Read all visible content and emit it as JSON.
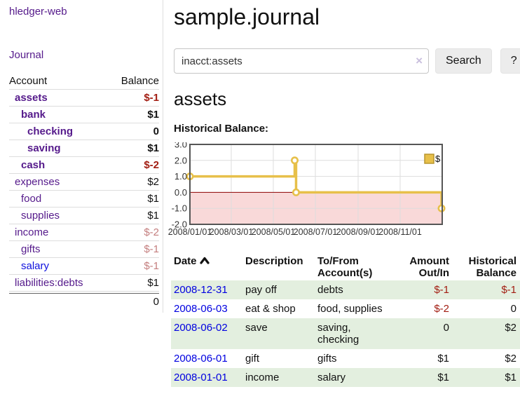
{
  "app": {
    "title": "hledger-web",
    "nav_journal": "Journal"
  },
  "sidebar": {
    "header": {
      "account": "Account",
      "balance": "Balance"
    },
    "accounts": [
      {
        "name": "assets",
        "depth": 0,
        "balance": "$-1",
        "bold": true,
        "neg": "strong",
        "link_color": "purple"
      },
      {
        "name": "bank",
        "depth": 1,
        "balance": "$1",
        "bold": true,
        "neg": "none",
        "link_color": "purple"
      },
      {
        "name": "checking",
        "depth": 2,
        "balance": "0",
        "bold": true,
        "neg": "none",
        "link_color": "purple"
      },
      {
        "name": "saving",
        "depth": 2,
        "balance": "$1",
        "bold": true,
        "neg": "none",
        "link_color": "purple"
      },
      {
        "name": "cash",
        "depth": 1,
        "balance": "$-2",
        "bold": true,
        "neg": "strong",
        "link_color": "purple"
      },
      {
        "name": "expenses",
        "depth": 0,
        "balance": "$2",
        "bold": false,
        "neg": "none",
        "link_color": "purple"
      },
      {
        "name": "food",
        "depth": 1,
        "balance": "$1",
        "bold": false,
        "neg": "none",
        "link_color": "purple"
      },
      {
        "name": "supplies",
        "depth": 1,
        "balance": "$1",
        "bold": false,
        "neg": "none",
        "link_color": "purple"
      },
      {
        "name": "income",
        "depth": 0,
        "balance": "$-2",
        "bold": false,
        "neg": "dim",
        "link_color": "purple"
      },
      {
        "name": "gifts",
        "depth": 1,
        "balance": "$-1",
        "bold": false,
        "neg": "dim",
        "link_color": "purple"
      },
      {
        "name": "salary",
        "depth": 1,
        "balance": "$-1",
        "bold": false,
        "neg": "dim",
        "link_color": "blue"
      },
      {
        "name": "liabilities:debts",
        "depth": 0,
        "balance": "$1",
        "bold": false,
        "neg": "none",
        "link_color": "purple"
      }
    ],
    "total": "0"
  },
  "header": {
    "title": "sample.journal"
  },
  "search": {
    "value": "inacct:assets",
    "clear_icon": "×",
    "button_label": "Search",
    "help_label": "?"
  },
  "account_page": {
    "title": "assets",
    "chart_label": "Historical Balance:"
  },
  "chart_data": {
    "type": "line",
    "title": "Historical Balance",
    "step": true,
    "legend": {
      "label": "$",
      "position": "top-right"
    },
    "ylim": [
      -2,
      3
    ],
    "y_ticks": [
      {
        "value": 3,
        "label": "3.0"
      },
      {
        "value": 2,
        "label": "2.0"
      },
      {
        "value": 1,
        "label": "1.0"
      },
      {
        "value": 0,
        "label": "0.0"
      },
      {
        "value": -1,
        "label": "-1.0"
      },
      {
        "value": -2,
        "label": "-2.0"
      }
    ],
    "x_range_days": [
      0,
      366
    ],
    "x_ticks": [
      {
        "label": "2008/01/01",
        "day": 0
      },
      {
        "label": "2008/03/01",
        "day": 60
      },
      {
        "label": "2008/05/01",
        "day": 121
      },
      {
        "label": "2008/07/01",
        "day": 182
      },
      {
        "label": "2008/09/01",
        "day": 244
      },
      {
        "label": "2008/11/01",
        "day": 305
      }
    ],
    "series": [
      {
        "name": "$",
        "points": [
          {
            "date": "2008-01-01",
            "day": 0,
            "value": 1
          },
          {
            "date": "2008-06-01",
            "day": 152,
            "value": 2
          },
          {
            "date": "2008-06-03",
            "day": 154,
            "value": 0
          },
          {
            "date": "2008-12-31",
            "day": 365,
            "value": -1
          }
        ]
      }
    ],
    "grid": true,
    "negative_region": true
  },
  "register": {
    "columns": {
      "date": "Date",
      "description": "Description",
      "account": "To/From Account(s)",
      "amount": "Amount Out/In",
      "balance": "Historical Balance"
    },
    "rows": [
      {
        "date": "2008-12-31",
        "description": "pay off",
        "accounts": "debts",
        "amount": "$-1",
        "amount_neg": true,
        "balance": "$-1",
        "balance_neg": true
      },
      {
        "date": "2008-06-03",
        "description": "eat & shop",
        "accounts": "food, supplies",
        "amount": "$-2",
        "amount_neg": true,
        "balance": "0",
        "balance_neg": false
      },
      {
        "date": "2008-06-02",
        "description": "save",
        "accounts": "saving, checking",
        "amount": "0",
        "amount_neg": false,
        "balance": "$2",
        "balance_neg": false
      },
      {
        "date": "2008-06-01",
        "description": "gift",
        "accounts": "gifts",
        "amount": "$1",
        "amount_neg": false,
        "balance": "$2",
        "balance_neg": false
      },
      {
        "date": "2008-01-01",
        "description": "income",
        "accounts": "salary",
        "amount": "$1",
        "amount_neg": false,
        "balance": "$1",
        "balance_neg": false
      }
    ]
  },
  "colors": {
    "link_purple": "#551A8B",
    "link_blue": "#0f10dd",
    "date_link_blue": "#0000e0",
    "negative_strong": "#a21d12",
    "negative_dim": "#c47e7e",
    "row_green": "#e3efdf",
    "chart_line_gold": "#e7c04a",
    "chart_legend_border": "#b8962e",
    "chart_negative_pink": "#f9d9d9",
    "chart_zero_line": "#8b0000",
    "chart_grid": "#dddddd",
    "chart_border": "#555555",
    "button_gray": "#ececec"
  }
}
